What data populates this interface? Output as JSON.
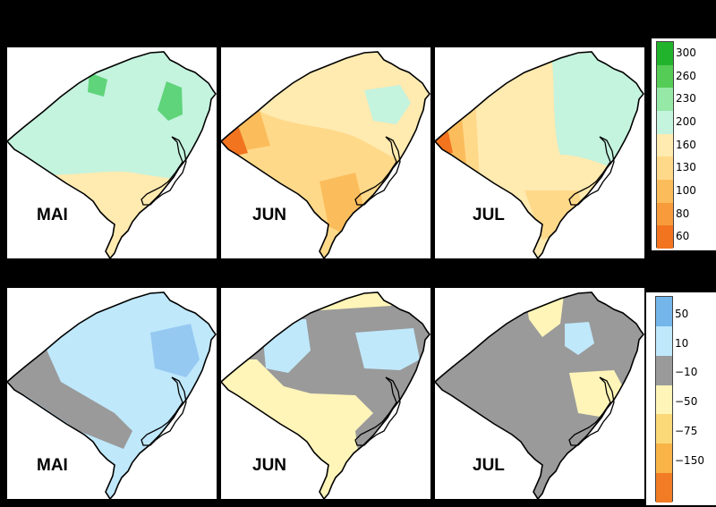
{
  "rows": [
    {
      "id": "top",
      "panels": [
        {
          "month": "MAI"
        },
        {
          "month": "JUN"
        },
        {
          "month": "JUL"
        }
      ],
      "legend": {
        "labels": [
          "300",
          "260",
          "230",
          "200",
          "160",
          "130",
          "100",
          "80",
          "60"
        ],
        "colors": [
          "#22b32c",
          "#55cc55",
          "#95e8a6",
          "#c4f3de",
          "#ffeab0",
          "#ffd98a",
          "#fbbd5c",
          "#f79b3b",
          "#f2741f"
        ]
      }
    },
    {
      "id": "bottom",
      "panels": [
        {
          "month": "MAI"
        },
        {
          "month": "JUN"
        },
        {
          "month": "JUL"
        }
      ],
      "legend": {
        "labels": [
          "50",
          "10",
          "−10",
          "−50",
          "−75",
          "−150"
        ],
        "colors": [
          "#74b6ea",
          "#bfe8fb",
          "#9a9a9a",
          "#fff5b8",
          "#fbd878",
          "#f8b447",
          "#f17c25"
        ]
      }
    }
  ],
  "palette": {
    "background": "#000000",
    "panel_background": "#ffffff",
    "map_outline": "#000000",
    "green_dark": "#5fd47a",
    "mint": "#c4f3de",
    "pale_yellow": "#ffeab0",
    "yellow": "#ffd98a",
    "orange": "#fbbd5c",
    "orange_dark": "#f79b3b",
    "red_orange": "#f2741f",
    "light_blue": "#bfe8fb",
    "mid_blue": "#96c9f2",
    "gray": "#9a9a9a",
    "anomaly_yellow": "#fff5b8"
  }
}
